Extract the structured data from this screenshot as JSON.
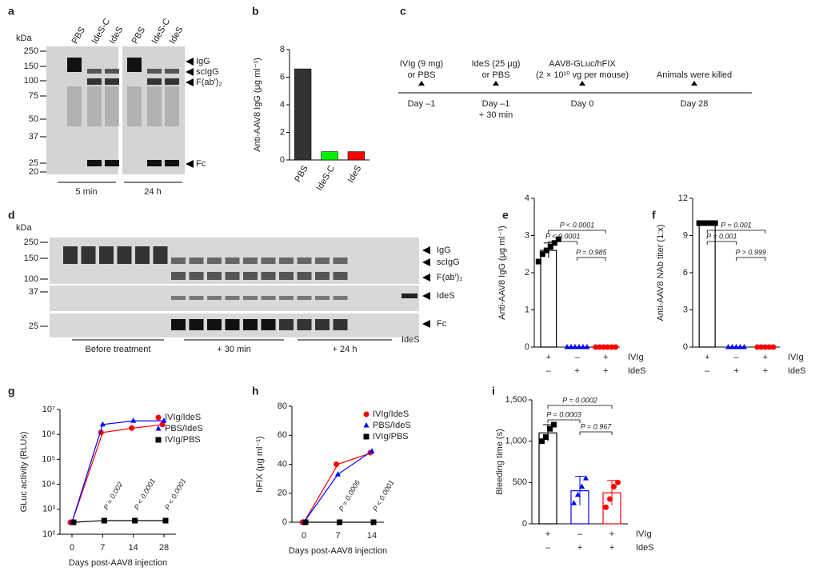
{
  "panel_a": {
    "letter": "a",
    "unit": "kDa",
    "markers": [
      "250",
      "150",
      "100",
      "75",
      "50",
      "37",
      "25",
      "20"
    ],
    "lanes": [
      "PBS",
      "IdeS-C",
      "IdeS",
      "PBS",
      "IdeS-C",
      "IdeS"
    ],
    "bands": [
      "IgG",
      "scIgG",
      "F(ab′)₂",
      "Fc"
    ],
    "times": [
      "5 min",
      "24 h"
    ]
  },
  "panel_c": {
    "letter": "c",
    "events": [
      {
        "label": [
          "IVIg (9 mg)",
          "or PBS"
        ],
        "day": [
          "Day –1"
        ]
      },
      {
        "label": [
          "IdeS (25 μg)",
          "or PBS"
        ],
        "day": [
          "Day –1",
          "+ 30 min"
        ]
      },
      {
        "label": [
          "AAV8-GLuc/hFIX",
          "(2 × 10¹⁰ vg per mouse)"
        ],
        "day": [
          "Day 0"
        ]
      },
      {
        "label": [
          "Animals were killed"
        ],
        "day": [
          "Day 28"
        ]
      }
    ]
  },
  "panel_d": {
    "letter": "d",
    "unit": "kDa",
    "markers": [
      "250",
      "150",
      "100",
      "37",
      "25"
    ],
    "bands": [
      "IgG",
      "scIgG",
      "F(ab′)₂",
      "IdeS",
      "Fc"
    ],
    "lane_label": "IdeS",
    "groups": [
      "Before treatment",
      "+ 30 min",
      "+ 24 h"
    ]
  },
  "chart_data": [
    {
      "type": "bar",
      "letter": "b",
      "categories": [
        "PBS",
        "IdeS-C",
        "IdeS"
      ],
      "values": [
        6.6,
        0.6,
        0.6
      ],
      "colors": [
        "#333333",
        "#00ee00",
        "#ff0000"
      ],
      "filled": true,
      "ylim": [
        0,
        8
      ],
      "yticks": [
        0,
        2,
        4,
        6,
        8
      ],
      "ylabel": "Anti-AAV8 IgG (μg ml⁻¹)"
    },
    {
      "type": "bar",
      "letter": "e",
      "values": [
        2.6,
        0,
        0
      ],
      "errors": [
        0.2,
        0,
        0
      ],
      "points": [
        [
          2.3,
          2.5,
          2.6,
          2.7,
          2.8,
          2.9
        ],
        [
          0,
          0,
          0,
          0,
          0,
          0
        ],
        [
          0,
          0,
          0,
          0,
          0,
          0
        ]
      ],
      "markers": [
        "square",
        "triangle",
        "circle"
      ],
      "colors": [
        "#000000",
        "#0000ff",
        "#ff0000"
      ],
      "filled": false,
      "ylim": [
        0,
        4
      ],
      "yticks": [
        0,
        1,
        2,
        3,
        4
      ],
      "ylabel": "Anti-AAV8 IgG (μg ml⁻¹)",
      "conditions": [
        {
          "name": "IVIg",
          "signs": [
            "+",
            "–",
            "+"
          ]
        },
        {
          "name": "IdeS",
          "signs": [
            "–",
            "+",
            "+"
          ]
        }
      ],
      "annotations": [
        "P < 0.0001",
        "P < 0.0001",
        "P = 0.985"
      ]
    },
    {
      "type": "bar",
      "letter": "f",
      "values": [
        10,
        0,
        0
      ],
      "points": [
        [
          10,
          10,
          10,
          10,
          10
        ],
        [
          0,
          0,
          0,
          0,
          0
        ],
        [
          0,
          0,
          0,
          0,
          0
        ]
      ],
      "markers": [
        "square",
        "triangle",
        "circle"
      ],
      "colors": [
        "#000000",
        "#0000ff",
        "#ff0000"
      ],
      "filled": false,
      "ylim": [
        0,
        12
      ],
      "yticks": [
        0,
        3,
        6,
        9,
        12
      ],
      "ylabel": "Anti-AAV8 NAb titer (1:x)",
      "conditions": [
        {
          "name": "IVIg",
          "signs": [
            "+",
            "–",
            "+"
          ]
        },
        {
          "name": "IdeS",
          "signs": [
            "–",
            "+",
            "+"
          ]
        }
      ],
      "annotations": [
        "P = 0.001",
        "P = 0.001",
        "P > 0.999"
      ]
    },
    {
      "type": "line",
      "letter": "g",
      "log": true,
      "legend": "upper right",
      "categories": [
        "0",
        "7",
        "14",
        "28"
      ],
      "series": [
        {
          "name": "IVIg/IdeS",
          "color": "#ff0000",
          "marker": "circle",
          "values": [
            300,
            1200000,
            1800000,
            2500000
          ]
        },
        {
          "name": "PBS/IdeS",
          "color": "#0000ff",
          "marker": "triangle",
          "values": [
            300,
            2500000,
            3500000,
            3500000
          ]
        },
        {
          "name": "IVIg/PBS",
          "color": "#000000",
          "marker": "square",
          "values": [
            300,
            350,
            350,
            350
          ]
        }
      ],
      "ylim": [
        100,
        10000000
      ],
      "yticks": [
        {
          "value": 100,
          "label": "10²"
        },
        {
          "value": 1000,
          "label": "10³"
        },
        {
          "value": 10000,
          "label": "10⁴"
        },
        {
          "value": 100000,
          "label": "10⁵"
        },
        {
          "value": 1000000,
          "label": "10⁶"
        },
        {
          "value": 10000000,
          "label": "10⁷"
        }
      ],
      "xlabel": "Days post-AAV8 injection",
      "ylabel": "GLuc activity (RLUs)",
      "annotations": [
        "P = 0.002",
        "P < 0.0001",
        "P < 0.0001"
      ]
    },
    {
      "type": "line",
      "letter": "h",
      "log": false,
      "legend": "upper right",
      "categories": [
        "0",
        "7",
        "14"
      ],
      "series": [
        {
          "name": "IVIg/IdeS",
          "color": "#ff0000",
          "marker": "circle",
          "values": [
            0,
            40,
            48
          ]
        },
        {
          "name": "PBS/IdeS",
          "color": "#0000ff",
          "marker": "triangle",
          "values": [
            0,
            33,
            49
          ]
        },
        {
          "name": "IVIg/PBS",
          "color": "#000000",
          "marker": "square",
          "values": [
            0,
            0,
            0
          ]
        }
      ],
      "ylim": [
        0,
        80
      ],
      "yticks": [
        0,
        20,
        40,
        60,
        80
      ],
      "xlabel": "Days post-AAV8 injection",
      "ylabel": "hFIX (μg ml⁻¹)",
      "annotations": [
        "P = 0.0006",
        "P < 0.0001"
      ]
    },
    {
      "type": "bar",
      "letter": "i",
      "values": [
        1100,
        400,
        375
      ],
      "errors": [
        100,
        175,
        150
      ],
      "points": [
        [
          1000,
          1050,
          1150,
          1200
        ],
        [
          250,
          350,
          450,
          550
        ],
        [
          200,
          300,
          450,
          500
        ]
      ],
      "markers": [
        "square",
        "triangle",
        "circle"
      ],
      "colors": [
        "#000000",
        "#0000ff",
        "#ff0000"
      ],
      "filled": false,
      "ylim": [
        0,
        1500
      ],
      "yticks": [
        0,
        500,
        {
          "value": 1000,
          "label": "1,000"
        },
        {
          "value": 1500,
          "label": "1,500"
        }
      ],
      "ylabel": "Bleeding time (s)",
      "conditions": [
        {
          "name": "IVIg",
          "signs": [
            "+",
            "–",
            "+"
          ]
        },
        {
          "name": "IdeS",
          "signs": [
            "–",
            "+",
            "+"
          ]
        }
      ],
      "annotations": [
        "P = 0.0002",
        "P = 0.0003",
        "P = 0.967"
      ]
    }
  ]
}
